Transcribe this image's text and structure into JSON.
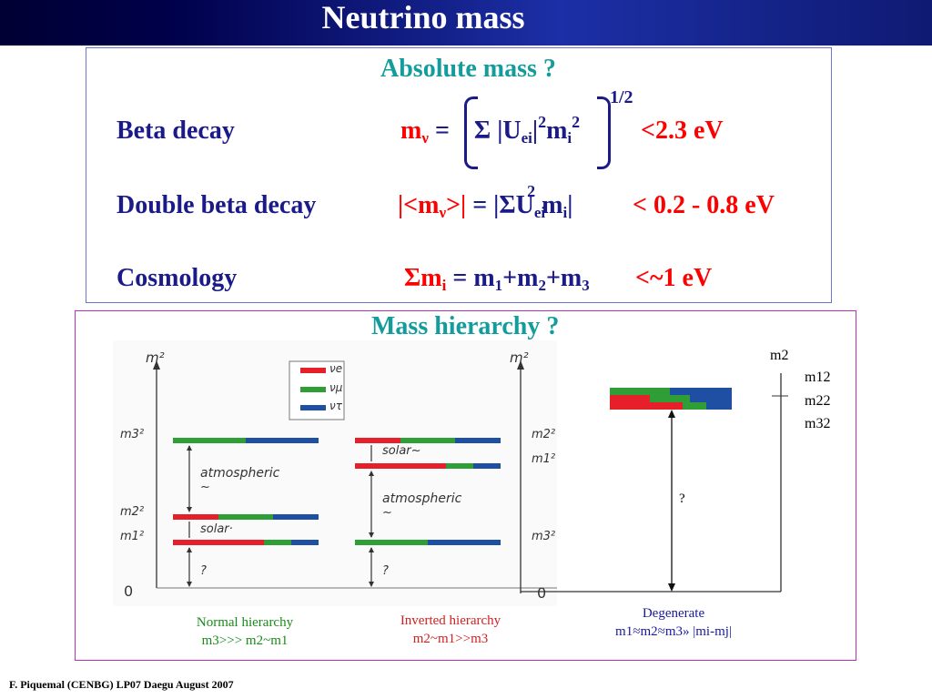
{
  "title": "Neutrino mass",
  "absolute": {
    "heading": "Absolute mass ?",
    "beta": {
      "label": "Beta decay",
      "m": "m",
      "nu": "ν",
      "eq": "=",
      "sigma": "Σ",
      "U": "|U",
      "ei": "ei",
      "bar": "|",
      "two": "2",
      "mi": "m",
      "i": "i",
      "power": "1/2",
      "limit": "<2.3 eV"
    },
    "double_beta": {
      "label": "Double beta decay",
      "lhs": "|<m",
      "nu": "ν",
      "close": ">|",
      "eq": "=",
      "rhs": "|ΣU",
      "ei": "ei",
      "two": "2",
      "m": "m",
      "i": "i",
      "bar": "|",
      "limit": "< 0.2 - 0.8 eV"
    },
    "cosmology": {
      "label": "Cosmology",
      "sigma": "Σm",
      "i": "i",
      "eq": "=",
      "m": "m",
      "one": "1",
      "plus": "+m",
      "twos": "2",
      "plus2": "+m",
      "three": "3",
      "limit": "<~1 eV"
    }
  },
  "hierarchy": {
    "heading": "Mass hierarchy ?",
    "axis_label": "m²",
    "zero": "0",
    "legend": [
      "νe",
      "νμ",
      "ντ"
    ],
    "normal": {
      "m3": "m3²",
      "m2": "m2²",
      "m1": "m1²",
      "atmospheric": "atmospheric",
      "tilde": "~",
      "solar": "solar·",
      "q": "?",
      "caption1": "Normal hierarchy",
      "caption2": "m3>>> m2~m1"
    },
    "inverted": {
      "m2": "m2²",
      "m1": "m1²",
      "m3": "m3²",
      "solar": "solar~",
      "atmospheric": "atmospheric",
      "tilde": "~",
      "q": "?",
      "caption1": "Inverted hierarchy",
      "caption2": "m2~m1>>m3"
    },
    "degenerate": {
      "q": "?",
      "axis": "m2",
      "m1": "m12",
      "m2": "m22",
      "m3": "m32",
      "caption1": "Degenerate",
      "caption2": "m1≈m2≈m3» |mi-mj|"
    }
  },
  "footer": "F. Piquemal (CENBG)     LP07 Daegu August 2007",
  "colors": {
    "nue": "#e5202a",
    "numu": "#2f9e36",
    "nutau": "#1f4fa3",
    "teal": "#149c9c",
    "navy": "#1a1a88",
    "red": "#ff0000"
  }
}
